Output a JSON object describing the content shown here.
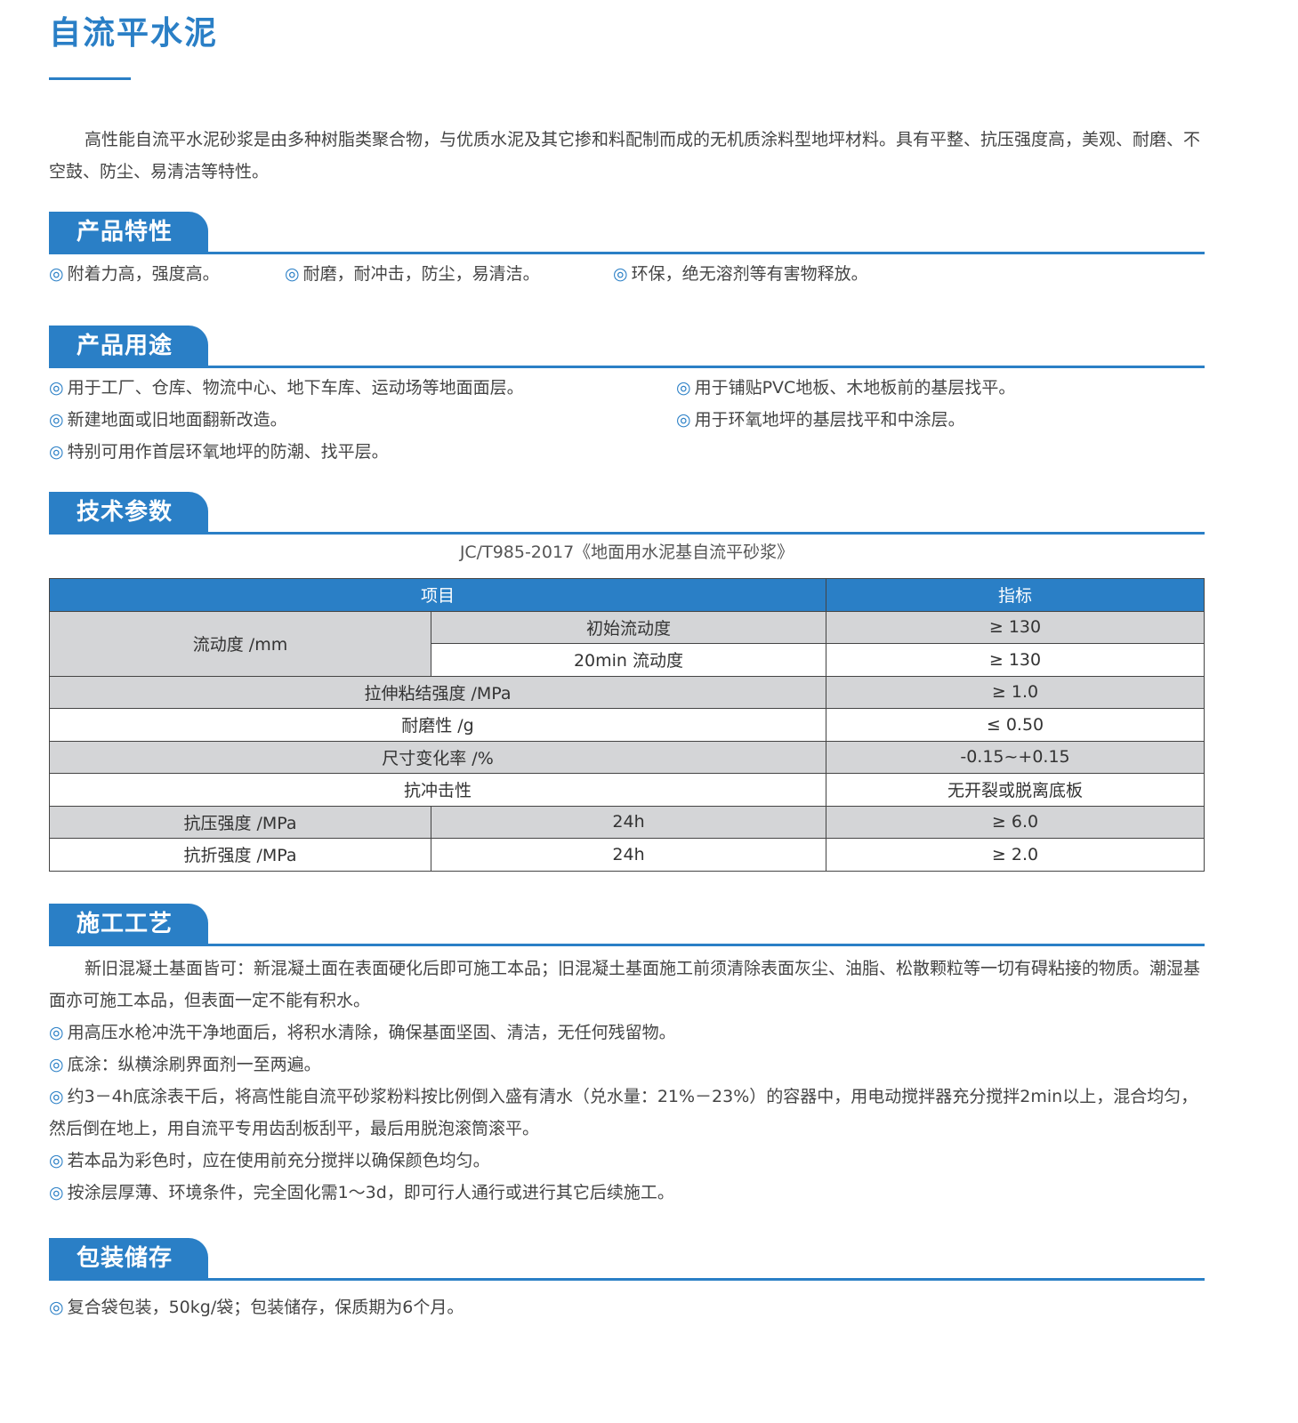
{
  "title": "自流平水泥",
  "intro": "高性能自流平水泥砂浆是由多种树脂类聚合物，与优质水泥及其它掺和料配制而成的无机质涂料型地坪材料。具有平整、抗压强度高，美观、耐磨、不空鼓、防尘、易清洁等特性。",
  "bullet": "◎",
  "accent_color": "#2a7fc6",
  "features": {
    "heading": "产品特性",
    "items": [
      "附着力高，强度高。",
      "耐磨，耐冲击，防尘，易清洁。",
      "环保，绝无溶剂等有害物释放。"
    ]
  },
  "uses": {
    "heading": "产品用途",
    "items": [
      "用于工厂、仓库、物流中心、地下车库、运动场等地面面层。",
      "用于铺贴PVC地板、木地板前的基层找平。",
      "新建地面或旧地面翻新改造。",
      "用于环氧地坪的基层找平和中涂层。",
      "特别可用作首层环氧地坪的防潮、找平层。"
    ]
  },
  "tech": {
    "heading": "技术参数",
    "standard": "JC/T985-2017《地面用水泥基自流平砂浆》",
    "headers": [
      "项目",
      "指标"
    ],
    "rows": [
      [
        "流动度 /mm",
        "初始流动度",
        "≥ 130"
      ],
      [
        "",
        "20min 流动度",
        "≥ 130"
      ],
      [
        "拉伸粘结强度 /MPa",
        "",
        "≥ 1.0"
      ],
      [
        "耐磨性 /g",
        "",
        "≤ 0.50"
      ],
      [
        "尺寸变化率 /%",
        "",
        "-0.15~+0.15"
      ],
      [
        "抗冲击性",
        "",
        "无开裂或脱离底板"
      ],
      [
        "抗压强度 /MPa",
        "24h",
        "≥ 6.0"
      ],
      [
        "抗折强度 /MPa",
        "24h",
        "≥ 2.0"
      ]
    ]
  },
  "process": {
    "heading": "施工工艺",
    "intro": "新旧混凝土基面皆可：新混凝土面在表面硬化后即可施工本品；旧混凝土基面施工前须清除表面灰尘、油脂、松散颗粒等一切有碍粘接的物质。潮湿基面亦可施工本品，但表面一定不能有积水。",
    "items": [
      "用高压水枪冲洗干净地面后，将积水清除，确保基面坚固、清洁，无任何残留物。",
      "底涂：纵横涂刷界面剂一至两遍。",
      "约3－4h底涂表干后，将高性能自流平砂浆粉料按比例倒入盛有清水（兑水量：21%－23%）的容器中，用电动搅拌器充分搅拌2min以上，混合均匀，然后倒在地上，用自流平专用齿刮板刮平，最后用脱泡滚筒滚平。",
      "若本品为彩色时，应在使用前充分搅拌以确保颜色均匀。",
      "按涂层厚薄、环境条件，完全固化需1～3d，即可行人通行或进行其它后续施工。"
    ]
  },
  "packaging": {
    "heading": "包装储存",
    "items": [
      "复合袋包装，50kg/袋；包装储存，保质期为6个月。"
    ]
  }
}
